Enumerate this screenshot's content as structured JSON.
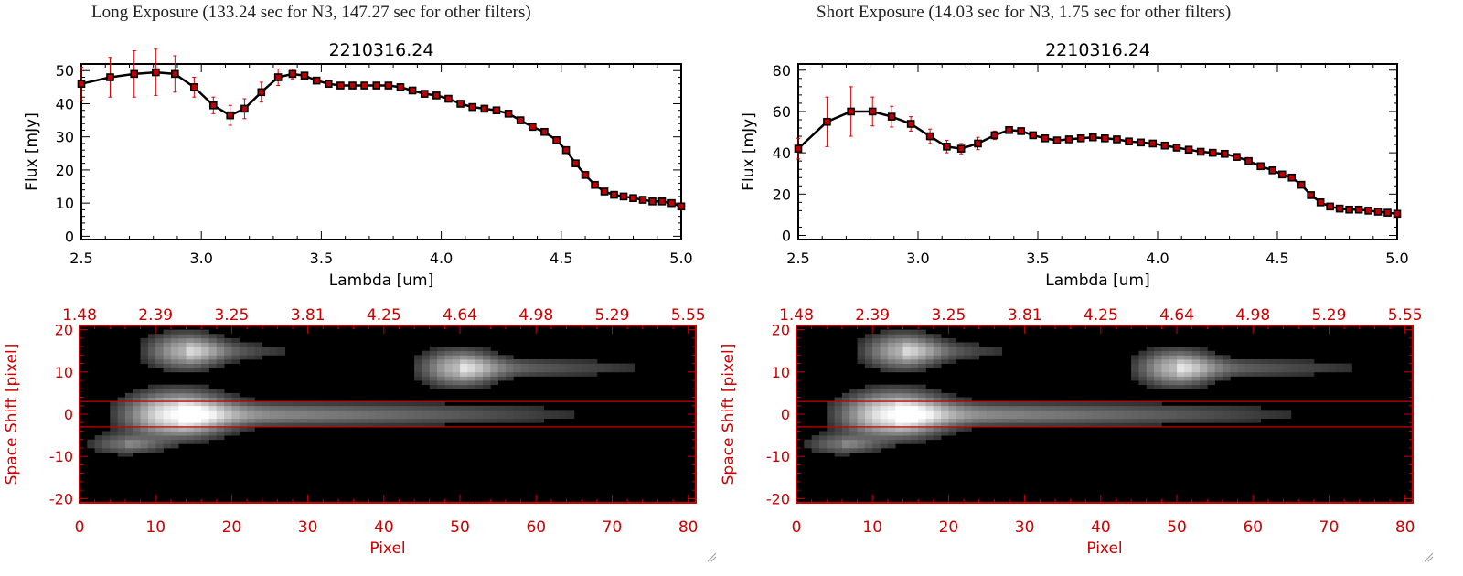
{
  "colors": {
    "line": "#000000",
    "marker": "#c00000",
    "error": "#e00000",
    "image_axis": "#cc0000",
    "image_bg": "#000000"
  },
  "panels": [
    {
      "title": "Long Exposure (133.24 sec for N3, 147.27 sec for other filters)",
      "spectrum": {
        "object_id": "2210316.24",
        "xlabel": "Lambda [um]",
        "ylabel": "Flux [mJy]"
      },
      "image": {
        "xlabel": "Pixel",
        "ylabel": "Space Shift [pixel]"
      }
    },
    {
      "title": "Short Exposure (14.03 sec for N3, 1.75 sec for other filters)",
      "spectrum": {
        "object_id": "2210316.24",
        "xlabel": "Lambda [um]",
        "ylabel": "Flux [mJy]"
      },
      "image": {
        "xlabel": "Pixel",
        "ylabel": "Space Shift [pixel]"
      }
    }
  ],
  "chart_data": [
    {
      "type": "line",
      "title": "2210316.24",
      "xlabel": "Lambda [um]",
      "ylabel": "Flux [mJy]",
      "xlim": [
        2.5,
        5.0
      ],
      "ylim": [
        -1,
        52
      ],
      "xticks": [
        2.5,
        3.0,
        3.5,
        4.0,
        4.5,
        5.0
      ],
      "xtick_labels": [
        "2.5",
        "3.0",
        "3.5",
        "4.0",
        "4.5",
        "5.0"
      ],
      "yticks": [
        0,
        10,
        20,
        30,
        40,
        50
      ],
      "ytick_labels": [
        "0",
        "10",
        "20",
        "30",
        "40",
        "50"
      ],
      "x": [
        2.5,
        2.62,
        2.72,
        2.81,
        2.89,
        2.97,
        3.05,
        3.12,
        3.18,
        3.25,
        3.32,
        3.38,
        3.43,
        3.48,
        3.53,
        3.58,
        3.63,
        3.68,
        3.73,
        3.78,
        3.83,
        3.88,
        3.93,
        3.98,
        4.03,
        4.08,
        4.13,
        4.18,
        4.23,
        4.28,
        4.33,
        4.38,
        4.43,
        4.48,
        4.52,
        4.56,
        4.6,
        4.64,
        4.68,
        4.72,
        4.76,
        4.8,
        4.84,
        4.88,
        4.92,
        4.96,
        5.0
      ],
      "y": [
        46,
        48,
        49,
        49.5,
        49,
        45,
        39.5,
        36.5,
        38.5,
        43.5,
        48,
        49,
        48.5,
        47,
        46,
        45.5,
        45.5,
        45.5,
        45.5,
        45.5,
        45,
        44,
        43,
        42.5,
        41.5,
        40,
        39,
        38.5,
        38,
        37,
        35,
        33,
        31.5,
        29,
        26,
        22,
        18.5,
        15.5,
        13.5,
        12.5,
        12,
        11.5,
        11,
        10.5,
        10.5,
        10,
        9
      ],
      "yerr": [
        5,
        6,
        7,
        7,
        5.5,
        3,
        2.5,
        3,
        3,
        3,
        2.5,
        1.5,
        1,
        0.7,
        0.7,
        0.7,
        0.7,
        0.7,
        0.7,
        0.7,
        0.7,
        0.7,
        0.7,
        0.7,
        0.7,
        0.7,
        0.7,
        0.7,
        0.7,
        0.7,
        0.7,
        0.7,
        0.7,
        0.7,
        0.7,
        0.7,
        0.7,
        0.7,
        0.7,
        0.7,
        0.7,
        0.7,
        0.7,
        0.7,
        0.7,
        0.7,
        0.7
      ],
      "grid": false
    },
    {
      "type": "line",
      "title": "2210316.24",
      "xlabel": "Lambda [um]",
      "ylabel": "Flux [mJy]",
      "xlim": [
        2.5,
        5.0
      ],
      "ylim": [
        -2,
        83
      ],
      "xticks": [
        2.5,
        3.0,
        3.5,
        4.0,
        4.5,
        5.0
      ],
      "xtick_labels": [
        "2.5",
        "3.0",
        "3.5",
        "4.0",
        "4.5",
        "5.0"
      ],
      "yticks": [
        0,
        20,
        40,
        60,
        80
      ],
      "ytick_labels": [
        "0",
        "20",
        "40",
        "60",
        "80"
      ],
      "x": [
        2.5,
        2.62,
        2.72,
        2.81,
        2.89,
        2.97,
        3.05,
        3.12,
        3.18,
        3.25,
        3.32,
        3.38,
        3.43,
        3.48,
        3.53,
        3.58,
        3.63,
        3.68,
        3.73,
        3.78,
        3.83,
        3.88,
        3.93,
        3.98,
        4.03,
        4.08,
        4.13,
        4.18,
        4.23,
        4.28,
        4.33,
        4.38,
        4.43,
        4.48,
        4.52,
        4.56,
        4.6,
        4.64,
        4.68,
        4.72,
        4.76,
        4.8,
        4.84,
        4.88,
        4.92,
        4.96,
        5.0
      ],
      "y": [
        42,
        55,
        60,
        60,
        57.5,
        54,
        48,
        43,
        42,
        44.5,
        48.5,
        51,
        50.5,
        48.5,
        47,
        46,
        46.5,
        47,
        47.5,
        47,
        46.5,
        45.5,
        45,
        44.5,
        43.5,
        42.5,
        41.5,
        40.5,
        40,
        39.5,
        38,
        36,
        33.5,
        31.5,
        29.5,
        28,
        24.5,
        19.5,
        16,
        14,
        13,
        12.5,
        12.5,
        12,
        11.5,
        11,
        10.5
      ],
      "yerr": [
        5,
        12,
        12,
        7,
        5,
        3.5,
        3.5,
        3,
        2.5,
        3,
        2,
        1.5,
        1,
        1,
        1,
        1,
        1,
        1,
        1,
        1,
        1,
        1,
        1,
        1,
        1,
        1,
        1,
        1,
        1,
        1,
        1,
        1,
        1,
        1,
        1,
        1,
        1,
        1,
        1,
        1,
        1,
        1,
        1,
        1,
        1,
        1,
        1
      ],
      "grid": false
    },
    {
      "type": "heatmap",
      "xlabel": "Pixel",
      "ylabel": "Space Shift [pixel]",
      "xlim": [
        0,
        81
      ],
      "ylim": [
        -21,
        21
      ],
      "xticks": [
        0,
        10,
        20,
        30,
        40,
        50,
        60,
        70,
        80
      ],
      "xtick_labels": [
        "0",
        "10",
        "20",
        "30",
        "40",
        "50",
        "60",
        "70",
        "80"
      ],
      "yticks": [
        -20,
        -10,
        0,
        10,
        20
      ],
      "ytick_labels": [
        "-20",
        "-10",
        "0",
        "10",
        "20"
      ],
      "top_ticks": [
        0,
        10,
        20,
        30,
        40,
        50,
        60,
        70,
        80
      ],
      "top_tick_labels": [
        "1.48",
        "2.39",
        "3.25",
        "3.81",
        "4.25",
        "4.64",
        "4.98",
        "5.29",
        "5.55"
      ],
      "extraction_window": [
        -3,
        3
      ],
      "sources": [
        {
          "x": 13,
          "y": 0,
          "peak": 1.0,
          "sx": 4,
          "sy": 3,
          "tail": 60
        },
        {
          "x": 14,
          "y": 15,
          "peak": 0.55,
          "sx": 3,
          "sy": 2.5,
          "tail": 18
        },
        {
          "x": 50,
          "y": 11,
          "peak": 0.6,
          "sx": 3,
          "sy": 2.5,
          "tail": 30
        },
        {
          "x": 6,
          "y": -7,
          "peak": 0.25,
          "sx": 3,
          "sy": 1.5,
          "tail": 8
        }
      ]
    },
    {
      "type": "heatmap",
      "xlabel": "Pixel",
      "ylabel": "Space Shift [pixel]",
      "xlim": [
        0,
        81
      ],
      "ylim": [
        -21,
        21
      ],
      "xticks": [
        0,
        10,
        20,
        30,
        40,
        50,
        60,
        70,
        80
      ],
      "xtick_labels": [
        "0",
        "10",
        "20",
        "30",
        "40",
        "50",
        "60",
        "70",
        "80"
      ],
      "yticks": [
        -20,
        -10,
        0,
        10,
        20
      ],
      "ytick_labels": [
        "-20",
        "-10",
        "0",
        "10",
        "20"
      ],
      "top_ticks": [
        0,
        10,
        20,
        30,
        40,
        50,
        60,
        70,
        80
      ],
      "top_tick_labels": [
        "1.48",
        "2.39",
        "3.25",
        "3.81",
        "4.25",
        "4.64",
        "4.98",
        "5.29",
        "5.55"
      ],
      "extraction_window": [
        -3,
        3
      ],
      "sources": [
        {
          "x": 13,
          "y": 0,
          "peak": 1.0,
          "sx": 4,
          "sy": 3,
          "tail": 60
        },
        {
          "x": 14,
          "y": 15,
          "peak": 0.55,
          "sx": 3,
          "sy": 2.5,
          "tail": 18
        },
        {
          "x": 50,
          "y": 11,
          "peak": 0.6,
          "sx": 3,
          "sy": 2.5,
          "tail": 30
        },
        {
          "x": 6,
          "y": -7,
          "peak": 0.25,
          "sx": 3,
          "sy": 1.5,
          "tail": 8
        }
      ]
    }
  ]
}
